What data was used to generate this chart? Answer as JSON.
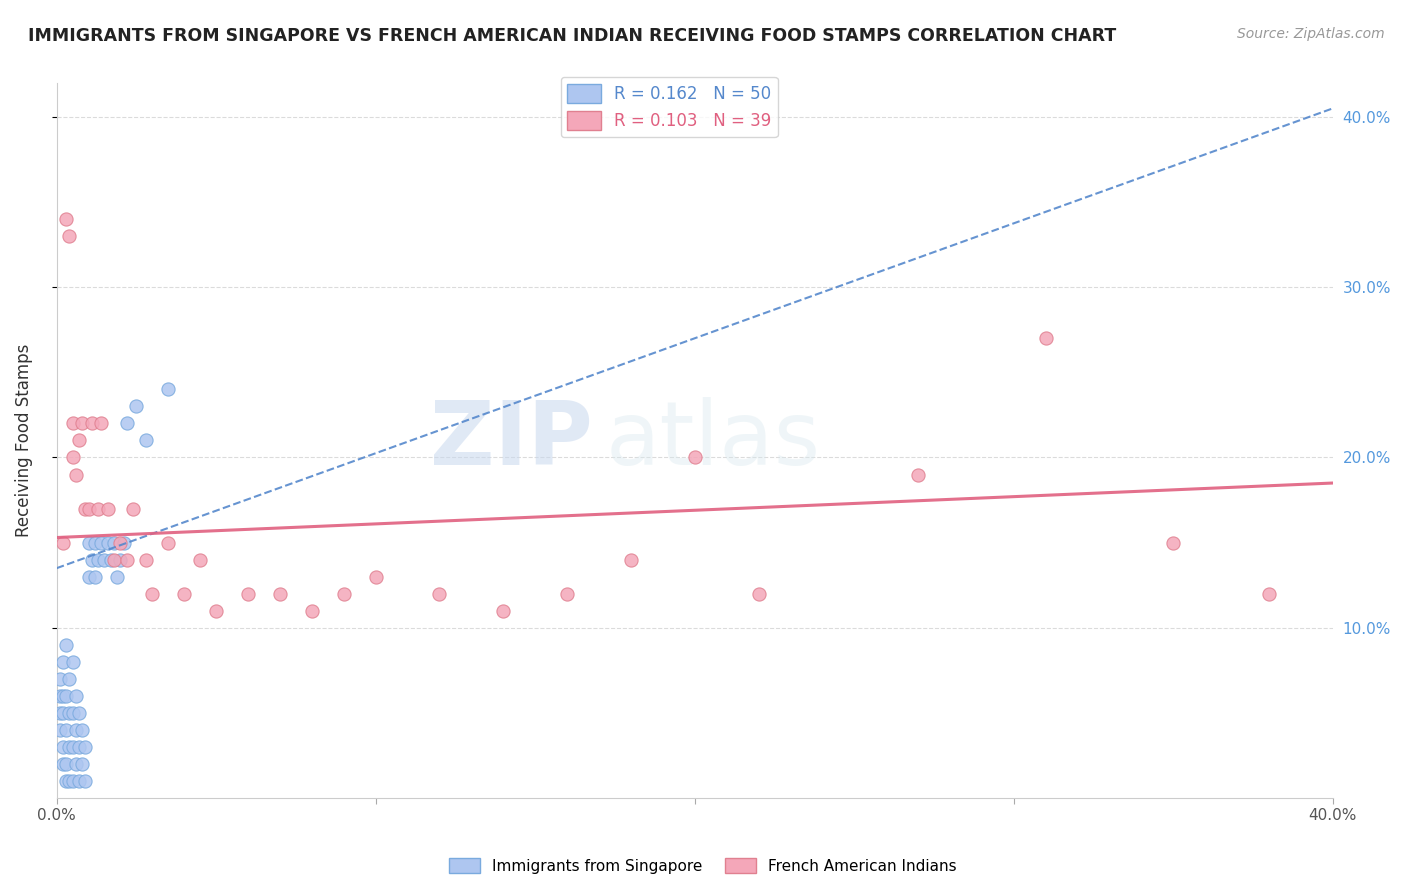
{
  "title": "IMMIGRANTS FROM SINGAPORE VS FRENCH AMERICAN INDIAN RECEIVING FOOD STAMPS CORRELATION CHART",
  "source": "Source: ZipAtlas.com",
  "ylabel": "Receiving Food Stamps",
  "watermark_zip": "ZIP",
  "watermark_atlas": "atlas",
  "legend1_label": "R = 0.162   N = 50",
  "legend2_label": "R = 0.103   N = 39",
  "legend1_color": "#aec6f0",
  "legend2_color": "#f4a7b9",
  "legend1_edge": "#7aaade",
  "legend2_edge": "#e08090",
  "trendline1_color": "#5588cc",
  "trendline2_color": "#e06080",
  "xlim": [
    0.0,
    0.4
  ],
  "ylim": [
    0.0,
    0.42
  ],
  "blue_trendline": [
    [
      0.0,
      0.135
    ],
    [
      0.4,
      0.405
    ]
  ],
  "pink_trendline": [
    [
      0.0,
      0.153
    ],
    [
      0.4,
      0.185
    ]
  ],
  "blue_points_x": [
    0.001,
    0.001,
    0.001,
    0.001,
    0.002,
    0.002,
    0.002,
    0.002,
    0.002,
    0.003,
    0.003,
    0.003,
    0.003,
    0.003,
    0.004,
    0.004,
    0.004,
    0.004,
    0.005,
    0.005,
    0.005,
    0.005,
    0.006,
    0.006,
    0.006,
    0.007,
    0.007,
    0.007,
    0.008,
    0.008,
    0.009,
    0.009,
    0.01,
    0.01,
    0.011,
    0.012,
    0.012,
    0.013,
    0.014,
    0.015,
    0.016,
    0.017,
    0.018,
    0.019,
    0.02,
    0.021,
    0.022,
    0.025,
    0.028,
    0.035
  ],
  "blue_points_y": [
    0.04,
    0.05,
    0.06,
    0.07,
    0.02,
    0.03,
    0.05,
    0.06,
    0.08,
    0.01,
    0.02,
    0.04,
    0.06,
    0.09,
    0.01,
    0.03,
    0.05,
    0.07,
    0.01,
    0.03,
    0.05,
    0.08,
    0.02,
    0.04,
    0.06,
    0.01,
    0.03,
    0.05,
    0.02,
    0.04,
    0.01,
    0.03,
    0.13,
    0.15,
    0.14,
    0.13,
    0.15,
    0.14,
    0.15,
    0.14,
    0.15,
    0.14,
    0.15,
    0.13,
    0.14,
    0.15,
    0.22,
    0.23,
    0.21,
    0.24
  ],
  "pink_points_x": [
    0.002,
    0.003,
    0.004,
    0.005,
    0.005,
    0.006,
    0.007,
    0.008,
    0.009,
    0.01,
    0.011,
    0.013,
    0.014,
    0.016,
    0.018,
    0.02,
    0.022,
    0.024,
    0.028,
    0.03,
    0.035,
    0.04,
    0.045,
    0.05,
    0.06,
    0.07,
    0.08,
    0.09,
    0.1,
    0.12,
    0.14,
    0.16,
    0.18,
    0.2,
    0.22,
    0.27,
    0.31,
    0.35,
    0.38
  ],
  "pink_points_y": [
    0.15,
    0.34,
    0.33,
    0.2,
    0.22,
    0.19,
    0.21,
    0.22,
    0.17,
    0.17,
    0.22,
    0.17,
    0.22,
    0.17,
    0.14,
    0.15,
    0.14,
    0.17,
    0.14,
    0.12,
    0.15,
    0.12,
    0.14,
    0.11,
    0.12,
    0.12,
    0.11,
    0.12,
    0.13,
    0.12,
    0.11,
    0.12,
    0.14,
    0.2,
    0.12,
    0.19,
    0.27,
    0.15,
    0.12
  ]
}
